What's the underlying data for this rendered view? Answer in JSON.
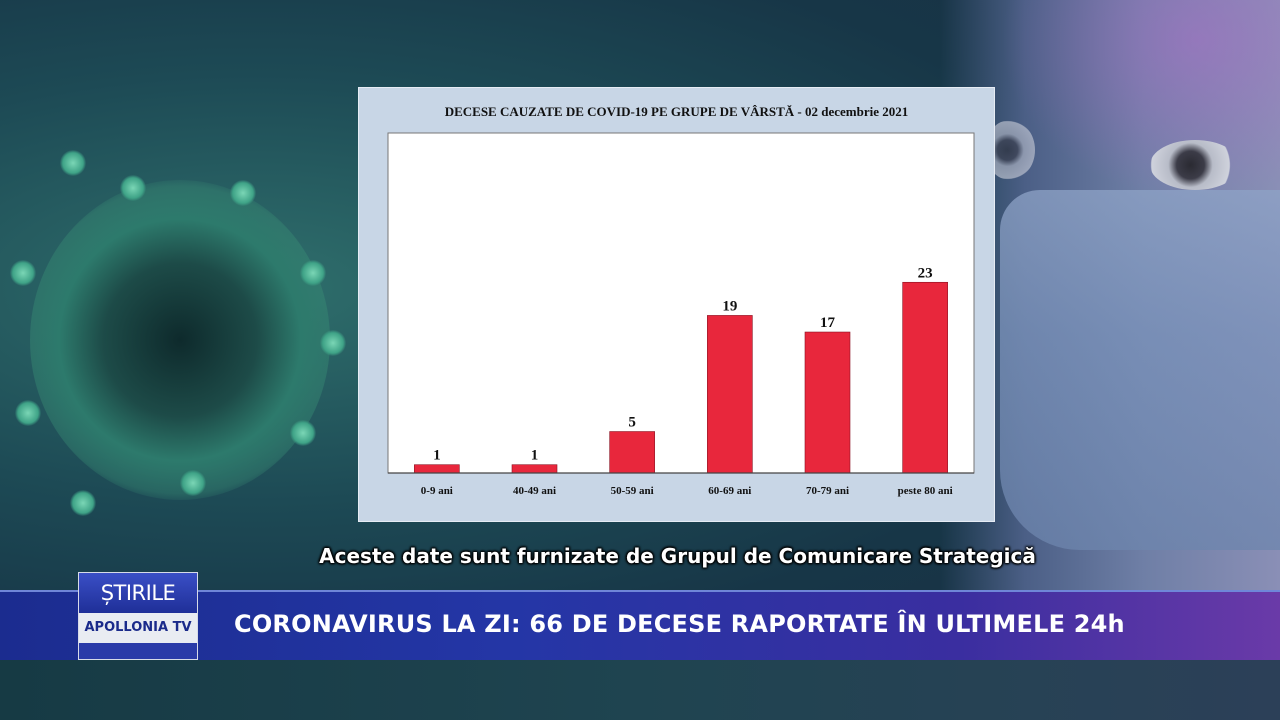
{
  "chart_data": {
    "type": "bar",
    "title": "DECESE CAUZATE DE COVID-19 PE GRUPE DE VÂRSTĂ - 02 decembrie 2021",
    "categories": [
      "0-9 ani",
      "40-49 ani",
      "50-59 ani",
      "60-69 ani",
      "70-79 ani",
      "peste 80 ani"
    ],
    "values": [
      1,
      1,
      5,
      19,
      17,
      23
    ],
    "xlabel": "",
    "ylabel": "",
    "ylim": [
      0,
      41
    ],
    "grid": false,
    "bar_color": "#e8273c",
    "data_labels": true
  },
  "subtitle": "Aceste date sunt furnizate de Grupul de Comunicare Strategică",
  "ticker": {
    "headline": "CORONAVIRUS LA ZI: 66 DE DECESE RAPORTATE ÎN ULTIMELE 24h"
  },
  "logo": {
    "top": "ȘTIRILE",
    "bottom": "APOLLONIA TV"
  },
  "colors": {
    "ticker": "#2436a6",
    "panel": "#c8d6e6",
    "bars": "#e8273c"
  }
}
